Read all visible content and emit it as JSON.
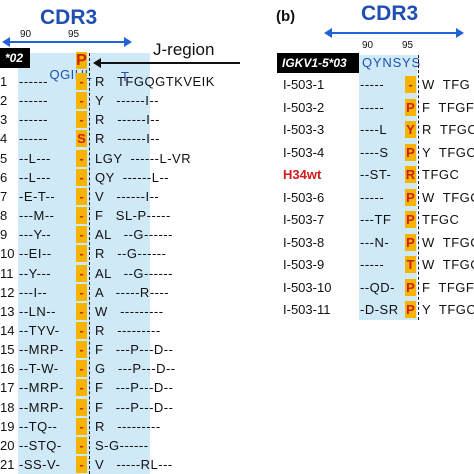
{
  "panel_a": {
    "cdr3_title": "CDR3",
    "tick_90": "90",
    "tick_95": "95",
    "germline_box": "*02",
    "germline_pre": "QGIHL",
    "germline_p": "P",
    "germline_post_t": "T",
    "germline_post": "FGQGTKVEIK",
    "jregion_label": "J-region",
    "rows": [
      {
        "label": "1",
        "pre": "------",
        "p": "-",
        "post": "R   TFGQGTKVEIK"
      },
      {
        "label": "2",
        "pre": "------",
        "p": "-",
        "post": "Y   ------I--"
      },
      {
        "label": "3",
        "pre": "------",
        "p": "-",
        "post": "R   ------I--"
      },
      {
        "label": "4",
        "pre": "------",
        "p": "S",
        "post": "R   ------I--"
      },
      {
        "label": "5",
        "pre": "--L---",
        "p": "-",
        "post": "LGY  ------L-VR"
      },
      {
        "label": "6",
        "pre": "--L---",
        "p": "-",
        "post": "QY  ------L--"
      },
      {
        "label": "7",
        "pre": "-E-T--",
        "p": "-",
        "post": "V   ------I--"
      },
      {
        "label": "8",
        "pre": "---M--",
        "p": "-",
        "post": "F   SL-P-----"
      },
      {
        "label": "9",
        "pre": "---Y--",
        "p": "-",
        "post": "AL   --G------"
      },
      {
        "label": "10",
        "pre": "--EI--",
        "p": "-",
        "post": "R   --G------"
      },
      {
        "label": "11",
        "pre": "--Y---",
        "p": "-",
        "post": "AL   --G------"
      },
      {
        "label": "12",
        "pre": "---I--",
        "p": "-",
        "post": "A   -----R----"
      },
      {
        "label": "13",
        "pre": "--LN--",
        "p": "-",
        "post": "W   ---------"
      },
      {
        "label": "14",
        "pre": "--TYV-",
        "p": "-",
        "post": "R   ---------"
      },
      {
        "label": "15",
        "pre": "--MRP-",
        "p": "-",
        "post": "F   ---P---D--"
      },
      {
        "label": "16",
        "pre": "--T-W-",
        "p": "-",
        "post": "G   ---P---D--"
      },
      {
        "label": "17",
        "pre": "--MRP-",
        "p": "-",
        "post": "F   ---P---D--"
      },
      {
        "label": "18",
        "pre": "--MRP-",
        "p": "-",
        "post": "F   ---P---D--"
      },
      {
        "label": "19",
        "pre": "--TQ--",
        "p": "-",
        "post": "R   ---------"
      },
      {
        "label": "20",
        "pre": "--STQ-",
        "p": "-",
        "post": "S-G------"
      },
      {
        "label": "21",
        "pre": "-SS-V-",
        "p": "-",
        "post": "V   -----RL---"
      }
    ]
  },
  "panel_b": {
    "panel_label": "(b)",
    "cdr3_title": "CDR3",
    "tick_90": "90",
    "tick_95": "95",
    "germline_box": "IGKV1-5*03",
    "germline_seq": "QYNSYS",
    "rows": [
      {
        "label": "I-503-1",
        "pre": "-----",
        "p": "-",
        "post": "W  TFG",
        "red": false
      },
      {
        "label": "I-503-2",
        "pre": "-----",
        "p": "P",
        "post": "F  TFGF",
        "red": false
      },
      {
        "label": "I-503-3",
        "pre": "----L",
        "p": "Y",
        "post": "R  TFGC",
        "red": false
      },
      {
        "label": "I-503-4",
        "pre": "----S",
        "p": "P",
        "post": "Y  TFGC",
        "red": false
      },
      {
        "label": "H34wt",
        "pre": "--ST-",
        "p": "R",
        "post": "TFGC",
        "red": true
      },
      {
        "label": "I-503-6",
        "pre": "-----",
        "p": "P",
        "post": "W  TFGC",
        "red": false
      },
      {
        "label": "I-503-7",
        "pre": "---TF",
        "p": "P",
        "post": "TFGC",
        "red": false
      },
      {
        "label": "I-503-8",
        "pre": "---N-",
        "p": "P",
        "post": "W  TFGC",
        "red": false
      },
      {
        "label": "I-503-9",
        "pre": "-----",
        "p": "T",
        "post": "W  TFGC",
        "red": false
      },
      {
        "label": "I-503-10",
        "pre": "--QD-",
        "p": "P",
        "post": "F  TFGF",
        "red": false
      },
      {
        "label": "I-503-11",
        "pre": "-D-SR",
        "p": "P",
        "post": "Y  TFGC",
        "red": false
      }
    ]
  }
}
